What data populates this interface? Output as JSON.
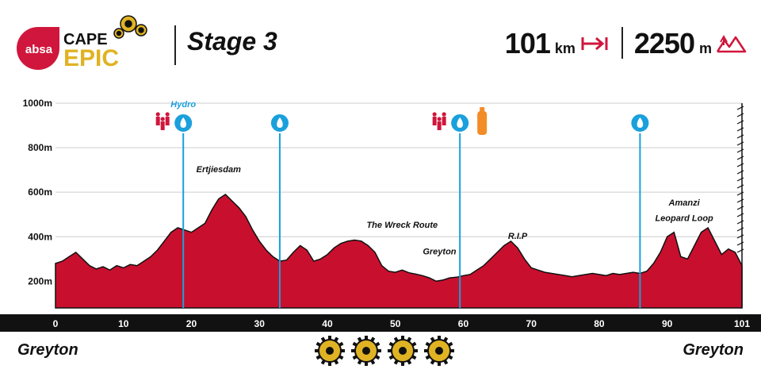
{
  "brand": {
    "sponsor": "absa",
    "event_top": "CAPE",
    "event_bottom": "EPIC"
  },
  "stage": {
    "title": "Stage 3"
  },
  "stats": {
    "distance_value": "101",
    "distance_unit": "km",
    "climbing_value": "2250",
    "climbing_unit": "m"
  },
  "towns": {
    "start": "Greyton",
    "finish": "Greyton"
  },
  "difficulty_rating": 4,
  "colors": {
    "profile_fill": "#c8102e",
    "profile_outline": "#111111",
    "water_marker": "#1aa0dc",
    "brand_red": "#d0163c",
    "brand_gold": "#e0b324"
  },
  "chart_data": {
    "type": "area",
    "x_range": [
      0,
      101
    ],
    "y_range": [
      80,
      1000
    ],
    "x_ticks": [
      0,
      10,
      20,
      30,
      40,
      50,
      60,
      70,
      80,
      90,
      101
    ],
    "y_ticks": [
      200,
      400,
      600,
      800,
      1000
    ],
    "y_tick_labels": [
      "200m",
      "400m",
      "600m",
      "800m",
      "1000m"
    ],
    "profile": [
      [
        0,
        280
      ],
      [
        1,
        290
      ],
      [
        2,
        310
      ],
      [
        3,
        330
      ],
      [
        4,
        300
      ],
      [
        5,
        270
      ],
      [
        6,
        255
      ],
      [
        7,
        265
      ],
      [
        8,
        250
      ],
      [
        9,
        270
      ],
      [
        10,
        260
      ],
      [
        11,
        275
      ],
      [
        12,
        270
      ],
      [
        13,
        290
      ],
      [
        14,
        310
      ],
      [
        15,
        340
      ],
      [
        16,
        380
      ],
      [
        17,
        420
      ],
      [
        18,
        440
      ],
      [
        19,
        430
      ],
      [
        20,
        420
      ],
      [
        21,
        440
      ],
      [
        22,
        460
      ],
      [
        23,
        520
      ],
      [
        24,
        570
      ],
      [
        25,
        590
      ],
      [
        26,
        560
      ],
      [
        27,
        530
      ],
      [
        28,
        490
      ],
      [
        29,
        430
      ],
      [
        30,
        380
      ],
      [
        31,
        340
      ],
      [
        32,
        310
      ],
      [
        33,
        290
      ],
      [
        34,
        295
      ],
      [
        35,
        330
      ],
      [
        36,
        360
      ],
      [
        37,
        340
      ],
      [
        38,
        290
      ],
      [
        39,
        300
      ],
      [
        40,
        320
      ],
      [
        41,
        350
      ],
      [
        42,
        370
      ],
      [
        43,
        380
      ],
      [
        44,
        385
      ],
      [
        45,
        380
      ],
      [
        46,
        360
      ],
      [
        47,
        330
      ],
      [
        48,
        270
      ],
      [
        49,
        245
      ],
      [
        50,
        240
      ],
      [
        51,
        250
      ],
      [
        52,
        238
      ],
      [
        53,
        232
      ],
      [
        54,
        225
      ],
      [
        55,
        215
      ],
      [
        56,
        200
      ],
      [
        57,
        205
      ],
      [
        58,
        215
      ],
      [
        59,
        218
      ],
      [
        60,
        225
      ],
      [
        61,
        230
      ],
      [
        62,
        250
      ],
      [
        63,
        270
      ],
      [
        64,
        300
      ],
      [
        65,
        330
      ],
      [
        66,
        360
      ],
      [
        67,
        380
      ],
      [
        68,
        350
      ],
      [
        69,
        300
      ],
      [
        70,
        260
      ],
      [
        71,
        250
      ],
      [
        72,
        240
      ],
      [
        73,
        235
      ],
      [
        74,
        230
      ],
      [
        75,
        225
      ],
      [
        76,
        220
      ],
      [
        77,
        225
      ],
      [
        78,
        230
      ],
      [
        79,
        235
      ],
      [
        80,
        230
      ],
      [
        81,
        225
      ],
      [
        82,
        235
      ],
      [
        83,
        230
      ],
      [
        84,
        235
      ],
      [
        85,
        240
      ],
      [
        86,
        235
      ],
      [
        87,
        245
      ],
      [
        88,
        280
      ],
      [
        89,
        330
      ],
      [
        90,
        400
      ],
      [
        91,
        420
      ],
      [
        92,
        310
      ],
      [
        93,
        300
      ],
      [
        94,
        360
      ],
      [
        95,
        420
      ],
      [
        96,
        440
      ],
      [
        97,
        380
      ],
      [
        98,
        320
      ],
      [
        99,
        345
      ],
      [
        100,
        330
      ],
      [
        101,
        270
      ]
    ],
    "waypoints": [
      {
        "km": 18.8,
        "label": "Hydro",
        "label_color": "#1aa0dc",
        "spectators": true,
        "bottle": false
      },
      {
        "km": 33,
        "label": "",
        "spectators": false,
        "bottle": false
      },
      {
        "km": 59.5,
        "label": "",
        "spectators": true,
        "bottle": true
      },
      {
        "km": 86,
        "label": "",
        "spectators": false,
        "bottle": false
      }
    ],
    "annotations": [
      {
        "text": "Ertjiesdam",
        "km": 24,
        "elev": 690
      },
      {
        "text": "The Wreck Route",
        "km": 51,
        "elev": 440
      },
      {
        "text": "Greyton",
        "km": 56.5,
        "elev": 320
      },
      {
        "text": "R.I.P",
        "km": 68,
        "elev": 390
      },
      {
        "text": "Amanzi",
        "km": 92.5,
        "elev": 540
      },
      {
        "text": "Leopard Loop",
        "km": 92.5,
        "elev": 470
      }
    ]
  }
}
